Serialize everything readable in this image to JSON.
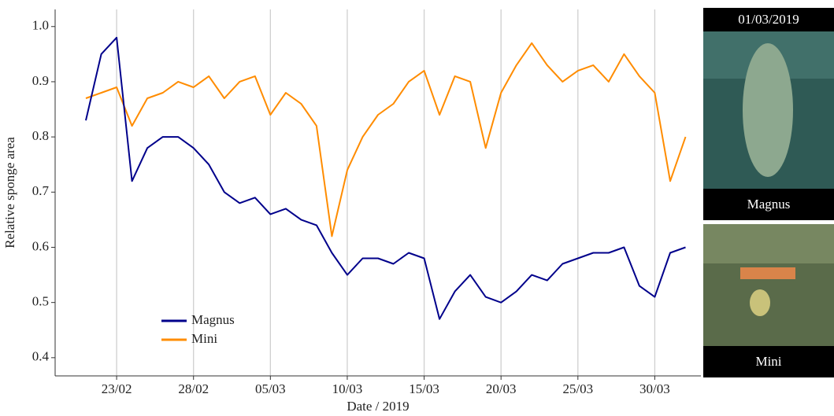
{
  "chart_data": {
    "type": "line",
    "x_label": "Date / 2019",
    "y_label": "Relative sponge area",
    "x": [
      "2019-02-21",
      "2019-02-22",
      "2019-02-23",
      "2019-02-24",
      "2019-02-25",
      "2019-02-26",
      "2019-02-27",
      "2019-02-28",
      "2019-03-01",
      "2019-03-02",
      "2019-03-03",
      "2019-03-04",
      "2019-03-05",
      "2019-03-06",
      "2019-03-07",
      "2019-03-08",
      "2019-03-09",
      "2019-03-10",
      "2019-03-11",
      "2019-03-12",
      "2019-03-13",
      "2019-03-14",
      "2019-03-15",
      "2019-03-16",
      "2019-03-17",
      "2019-03-18",
      "2019-03-19",
      "2019-03-20",
      "2019-03-21",
      "2019-03-22",
      "2019-03-23",
      "2019-03-24",
      "2019-03-25",
      "2019-03-26",
      "2019-03-27",
      "2019-03-28",
      "2019-03-29",
      "2019-03-30",
      "2019-03-31",
      "2019-04-01"
    ],
    "series": [
      {
        "name": "Magnus",
        "color": "#00008b",
        "values": [
          0.83,
          0.95,
          0.98,
          0.72,
          0.78,
          0.8,
          0.8,
          0.78,
          0.75,
          0.7,
          0.68,
          0.69,
          0.66,
          0.67,
          0.65,
          0.64,
          0.59,
          0.55,
          0.58,
          0.58,
          0.57,
          0.59,
          0.58,
          0.47,
          0.52,
          0.55,
          0.51,
          0.5,
          0.52,
          0.55,
          0.54,
          0.57,
          0.58,
          0.59,
          0.59,
          0.6,
          0.53,
          0.51,
          0.59,
          0.6
        ]
      },
      {
        "name": "Mini",
        "color": "#ff8c00",
        "values": [
          0.87,
          0.88,
          0.89,
          0.82,
          0.87,
          0.88,
          0.9,
          0.89,
          0.91,
          0.87,
          0.9,
          0.91,
          0.84,
          0.88,
          0.86,
          0.82,
          0.62,
          0.74,
          0.8,
          0.84,
          0.86,
          0.9,
          0.92,
          0.84,
          0.91,
          0.9,
          0.78,
          0.88,
          0.93,
          0.97,
          0.93,
          0.9,
          0.92,
          0.93,
          0.9,
          0.95,
          0.91,
          0.88,
          0.72,
          0.8
        ]
      }
    ],
    "xlim": [
      "2019-02-19",
      "2019-04-02"
    ],
    "xticks": [
      {
        "value": "2019-02-23",
        "label": "23/02"
      },
      {
        "value": "2019-02-28",
        "label": "28/02"
      },
      {
        "value": "2019-03-05",
        "label": "05/03"
      },
      {
        "value": "2019-03-10",
        "label": "10/03"
      },
      {
        "value": "2019-03-15",
        "label": "15/03"
      },
      {
        "value": "2019-03-20",
        "label": "20/03"
      },
      {
        "value": "2019-03-25",
        "label": "25/03"
      },
      {
        "value": "2019-03-30",
        "label": "30/03"
      }
    ],
    "ylim": [
      0.367,
      1.031
    ],
    "yticks": [
      0.4,
      0.5,
      0.6,
      0.7,
      0.8,
      0.9,
      {
        "value": 1,
        "label": "1.0"
      }
    ],
    "grid": "x",
    "legend": "bottom-left"
  },
  "side_panel": {
    "date": "01/03/2019",
    "labels": [
      "Magnus",
      "Mini"
    ]
  }
}
